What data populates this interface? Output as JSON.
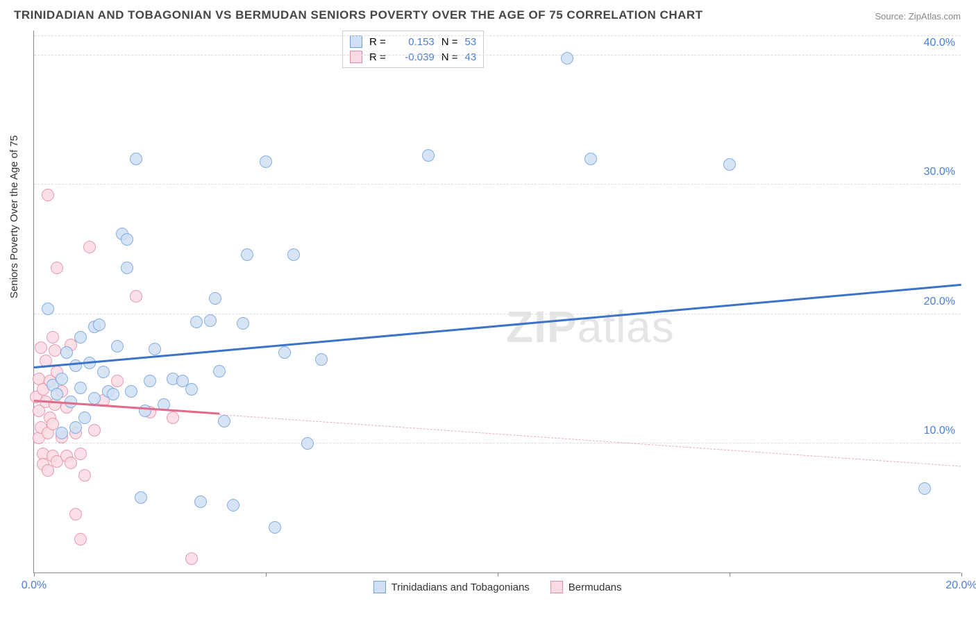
{
  "title": "TRINIDADIAN AND TOBAGONIAN VS BERMUDAN SENIORS POVERTY OVER THE AGE OF 75 CORRELATION CHART",
  "source": "Source: ZipAtlas.com",
  "watermark_a": "ZIP",
  "watermark_b": "atlas",
  "ylabel": "Seniors Poverty Over the Age of 75",
  "chart": {
    "type": "scatter",
    "background": "#ffffff",
    "grid_color": "#dcdcdc",
    "axis_color": "#888888",
    "xlim": [
      0,
      20
    ],
    "ylim": [
      0,
      42
    ],
    "xticks": [
      {
        "v": 0,
        "lbl": "0.0%"
      },
      {
        "v": 5,
        "lbl": ""
      },
      {
        "v": 10,
        "lbl": ""
      },
      {
        "v": 15,
        "lbl": ""
      },
      {
        "v": 20,
        "lbl": "20.0%"
      }
    ],
    "yticks": [
      {
        "v": 10,
        "lbl": "10.0%"
      },
      {
        "v": 20,
        "lbl": "20.0%"
      },
      {
        "v": 30,
        "lbl": "30.0%"
      },
      {
        "v": 40,
        "lbl": "40.0%"
      }
    ],
    "ytick_color": "#4a7fd6",
    "xtick_color": "#4a7fd6",
    "marker_radius": 9,
    "marker_border_w": 1.5,
    "series": [
      {
        "name": "Trinidadians and Tobagonians",
        "fill": "#cfe0f5",
        "stroke": "#6fa0de",
        "R_label": "R =",
        "R": "0.153",
        "N_label": "N =",
        "N": "53",
        "trend": {
          "x1": 0,
          "y1": 15.8,
          "x2": 20,
          "y2": 22.2,
          "color": "#3b73c9",
          "solid": true
        },
        "points": [
          [
            0.3,
            20.4
          ],
          [
            0.4,
            14.5
          ],
          [
            0.5,
            13.8
          ],
          [
            0.6,
            10.8
          ],
          [
            0.6,
            15.0
          ],
          [
            0.7,
            17.0
          ],
          [
            0.8,
            13.2
          ],
          [
            0.9,
            16.0
          ],
          [
            1.0,
            14.3
          ],
          [
            1.0,
            18.2
          ],
          [
            1.1,
            12.0
          ],
          [
            1.2,
            16.2
          ],
          [
            1.3,
            19.0
          ],
          [
            1.3,
            13.5
          ],
          [
            1.5,
            15.5
          ],
          [
            1.6,
            14.0
          ],
          [
            1.8,
            17.5
          ],
          [
            1.9,
            26.2
          ],
          [
            2.0,
            25.8
          ],
          [
            2.0,
            23.6
          ],
          [
            2.2,
            32.0
          ],
          [
            2.3,
            5.8
          ],
          [
            2.5,
            14.8
          ],
          [
            2.6,
            17.3
          ],
          [
            2.8,
            13.0
          ],
          [
            3.0,
            15.0
          ],
          [
            3.2,
            14.8
          ],
          [
            3.4,
            14.2
          ],
          [
            3.5,
            19.4
          ],
          [
            3.6,
            5.5
          ],
          [
            3.8,
            19.5
          ],
          [
            3.9,
            21.2
          ],
          [
            4.0,
            15.6
          ],
          [
            4.1,
            11.7
          ],
          [
            4.3,
            5.2
          ],
          [
            4.5,
            19.3
          ],
          [
            4.6,
            24.6
          ],
          [
            5.0,
            31.8
          ],
          [
            5.2,
            3.5
          ],
          [
            5.4,
            17.0
          ],
          [
            5.6,
            24.6
          ],
          [
            5.9,
            10.0
          ],
          [
            6.2,
            16.5
          ],
          [
            8.5,
            32.3
          ],
          [
            11.5,
            39.8
          ],
          [
            12.0,
            32.0
          ],
          [
            15.0,
            31.6
          ],
          [
            19.2,
            6.5
          ],
          [
            1.7,
            13.8
          ],
          [
            2.1,
            14.0
          ],
          [
            2.4,
            12.5
          ],
          [
            0.9,
            11.2
          ],
          [
            1.4,
            19.2
          ]
        ]
      },
      {
        "name": "Bermudans",
        "fill": "#fbdbe3",
        "stroke": "#e58aa3",
        "R_label": "R =",
        "R": "-0.039",
        "N_label": "N =",
        "N": "43",
        "trend_solid": {
          "x1": 0,
          "y1": 13.2,
          "x2": 4,
          "y2": 12.2,
          "color": "#e06b8b"
        },
        "trend_dash": {
          "x1": 4,
          "y1": 12.2,
          "x2": 20,
          "y2": 8.2,
          "color": "#e9a9bb"
        },
        "points": [
          [
            0.05,
            13.6
          ],
          [
            0.1,
            15.0
          ],
          [
            0.1,
            12.5
          ],
          [
            0.1,
            10.4
          ],
          [
            0.15,
            17.4
          ],
          [
            0.15,
            11.2
          ],
          [
            0.2,
            14.2
          ],
          [
            0.2,
            9.2
          ],
          [
            0.2,
            8.4
          ],
          [
            0.25,
            13.2
          ],
          [
            0.25,
            16.4
          ],
          [
            0.3,
            29.2
          ],
          [
            0.3,
            10.8
          ],
          [
            0.3,
            7.9
          ],
          [
            0.35,
            14.8
          ],
          [
            0.35,
            12.0
          ],
          [
            0.4,
            18.2
          ],
          [
            0.4,
            11.5
          ],
          [
            0.4,
            9.0
          ],
          [
            0.45,
            17.2
          ],
          [
            0.45,
            13.0
          ],
          [
            0.5,
            23.6
          ],
          [
            0.5,
            15.5
          ],
          [
            0.5,
            8.6
          ],
          [
            0.6,
            10.5
          ],
          [
            0.6,
            14.0
          ],
          [
            0.7,
            12.8
          ],
          [
            0.7,
            9.0
          ],
          [
            0.8,
            8.5
          ],
          [
            0.8,
            17.6
          ],
          [
            0.9,
            4.5
          ],
          [
            0.9,
            10.8
          ],
          [
            1.0,
            9.2
          ],
          [
            1.0,
            2.6
          ],
          [
            1.1,
            7.5
          ],
          [
            1.2,
            25.2
          ],
          [
            1.3,
            11.0
          ],
          [
            1.5,
            13.3
          ],
          [
            1.8,
            14.8
          ],
          [
            2.2,
            21.4
          ],
          [
            2.5,
            12.4
          ],
          [
            3.0,
            12.0
          ],
          [
            3.4,
            1.1
          ]
        ]
      }
    ]
  }
}
